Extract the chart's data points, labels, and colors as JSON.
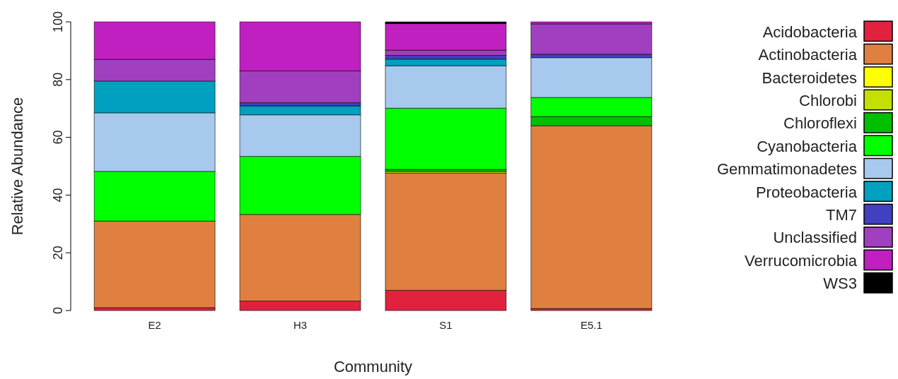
{
  "chart_data": {
    "type": "bar",
    "stacked": true,
    "xlabel": "Community",
    "ylabel": "Relative Abundance",
    "categories": [
      "E2",
      "H3",
      "S1",
      "E5.1"
    ],
    "ylim": [
      0,
      100
    ],
    "yticks": [
      0,
      20,
      40,
      60,
      80,
      100
    ],
    "grid": false,
    "legend": "right",
    "series": [
      {
        "name": "Acidobacteria",
        "color": "#e0223f",
        "values": [
          1.0,
          3.3,
          7.0,
          0.7
        ]
      },
      {
        "name": "Actinobacteria",
        "color": "#df8040",
        "values": [
          30.0,
          30.0,
          40.6,
          63.3
        ]
      },
      {
        "name": "Bacteroidetes",
        "color": "#ffff00",
        "values": [
          0,
          0,
          0,
          0
        ]
      },
      {
        "name": "Chlorobi",
        "color": "#c3e000",
        "values": [
          0,
          0,
          0.6,
          0
        ]
      },
      {
        "name": "Chloroflexi",
        "color": "#00bf00",
        "values": [
          0,
          null,
          0.7,
          3.2
        ]
      },
      {
        "name": "Cyanobacteria",
        "color": "#00ff00",
        "values": [
          17.2,
          20.1,
          21.2,
          6.6
        ]
      },
      {
        "name": "Gemmatimonadetes",
        "color": "#a7c9ee",
        "values": [
          20.3,
          14.4,
          14.7,
          13.8
        ]
      },
      {
        "name": "Proteobacteria",
        "color": "#00a0c0",
        "values": [
          11.0,
          3.1,
          2.3,
          0
        ]
      },
      {
        "name": "TM7",
        "color": "#4040c0",
        "values": [
          0,
          1.1,
          1.3,
          1.2
        ]
      },
      {
        "name": "Unclassified",
        "color": "#a040c0",
        "values": [
          7.5,
          11.0,
          1.8,
          10.5
        ]
      },
      {
        "name": "Verrucomicrobia",
        "color": "#c020c0",
        "values": [
          13.0,
          17.0,
          9.2,
          0.7
        ]
      },
      {
        "name": "WS3",
        "color": "#000000",
        "values": [
          0,
          0,
          0.6,
          0
        ]
      }
    ]
  }
}
